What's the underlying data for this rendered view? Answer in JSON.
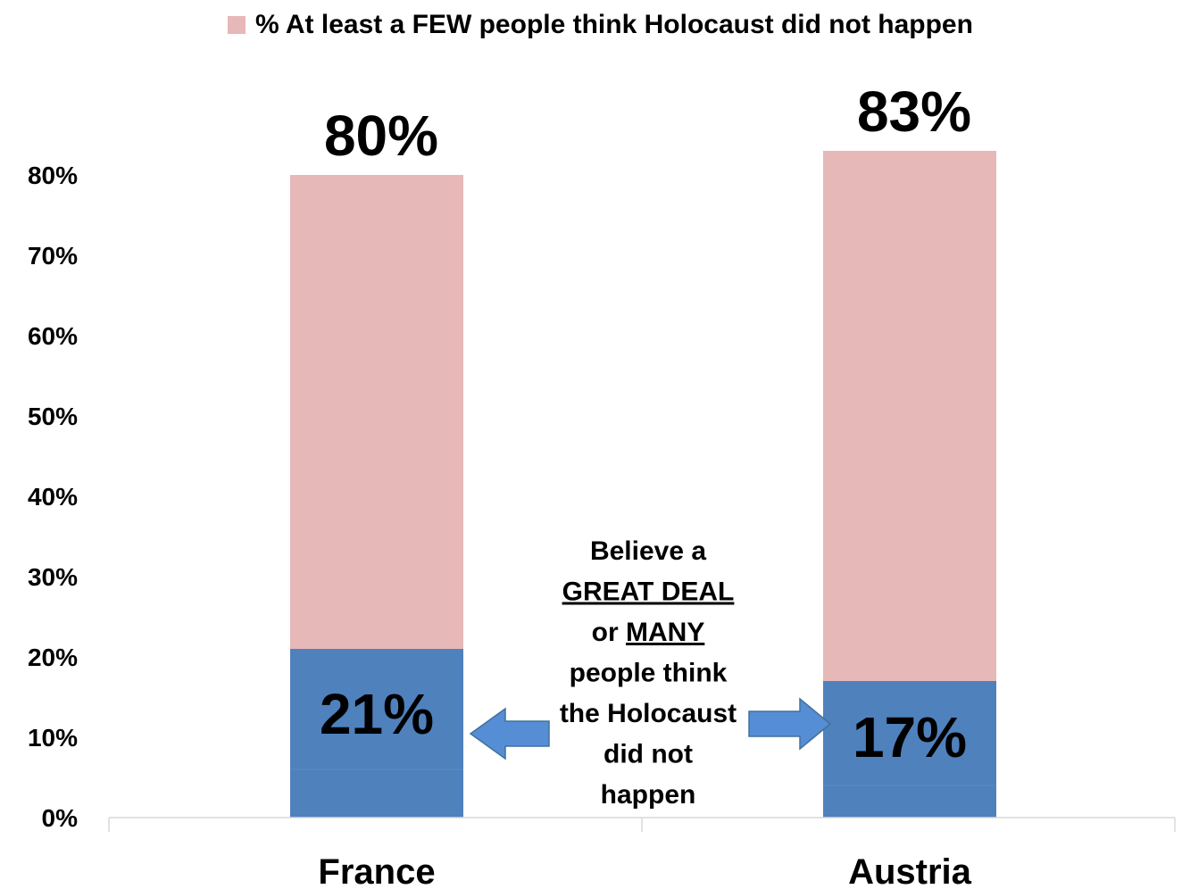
{
  "chart_data": {
    "type": "bar",
    "stacked": true,
    "title": "",
    "xlabel": "",
    "ylabel": "",
    "ylim": [
      0,
      0.8
    ],
    "y_ticks": [
      "0%",
      "10%",
      "20%",
      "30%",
      "40%",
      "50%",
      "60%",
      "70%",
      "80%"
    ],
    "y_tick_values": [
      0,
      0.1,
      0.2,
      0.3,
      0.4,
      0.5,
      0.6,
      0.7,
      0.8
    ],
    "grid": false,
    "legend_position": "top",
    "categories": [
      "France",
      "Austria"
    ],
    "series": [
      {
        "name": "% At least a FEW people think Holocaust did not happen",
        "color": "#e6b8b7",
        "totals": [
          0.8,
          0.83
        ],
        "labels": [
          "80%",
          "83%"
        ]
      },
      {
        "color": "#4f81bd",
        "values": [
          0.21,
          0.17
        ],
        "labels": [
          "21%",
          "17%"
        ]
      },
      {
        "color": "#4f81bd",
        "values": [
          0.06,
          0.04
        ]
      }
    ],
    "annotation": {
      "lines": [
        {
          "text": "Believe a",
          "underline": false
        },
        {
          "text": "GREAT DEAL",
          "underline": true
        },
        {
          "parts": [
            {
              "text": "or ",
              "underline": false
            },
            {
              "text": "MANY",
              "underline": true
            }
          ]
        },
        {
          "text": "people think",
          "underline": false
        },
        {
          "text": "the Holocaust",
          "underline": false
        },
        {
          "text": "did not",
          "underline": false
        },
        {
          "text": "happen",
          "underline": false
        }
      ],
      "arrow_color": "#558ed5"
    }
  }
}
